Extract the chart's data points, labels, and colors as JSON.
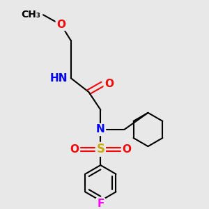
{
  "bg_color": "#e8e8e8",
  "bond_color": "#000000",
  "atom_colors": {
    "O": "#ff0000",
    "N": "#0000ff",
    "S": "#ccaa00",
    "F": "#ff00ff",
    "H": "#777777",
    "C": "#000000"
  },
  "font_size": 11,
  "fig_size": [
    3.0,
    3.0
  ],
  "dpi": 100
}
